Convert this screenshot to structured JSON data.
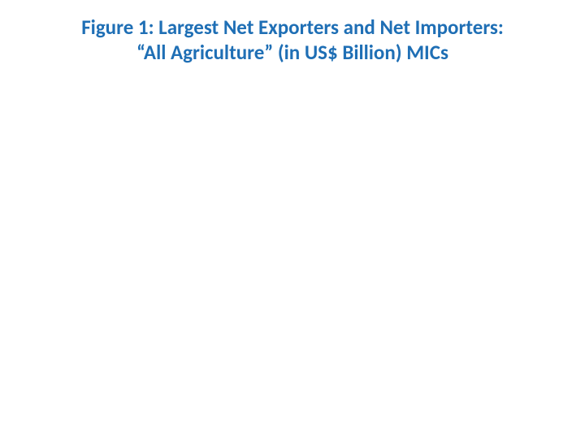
{
  "figure": {
    "title_line1": "Figure 1: Largest Net Exporters and Net Importers:",
    "title_line2": "“All Agriculture” (in US$ Billion) MICs",
    "title_color": "#1f6fb5",
    "title_fontsize": 25,
    "title_fontweight": "bold",
    "background_color": "#ffffff"
  }
}
